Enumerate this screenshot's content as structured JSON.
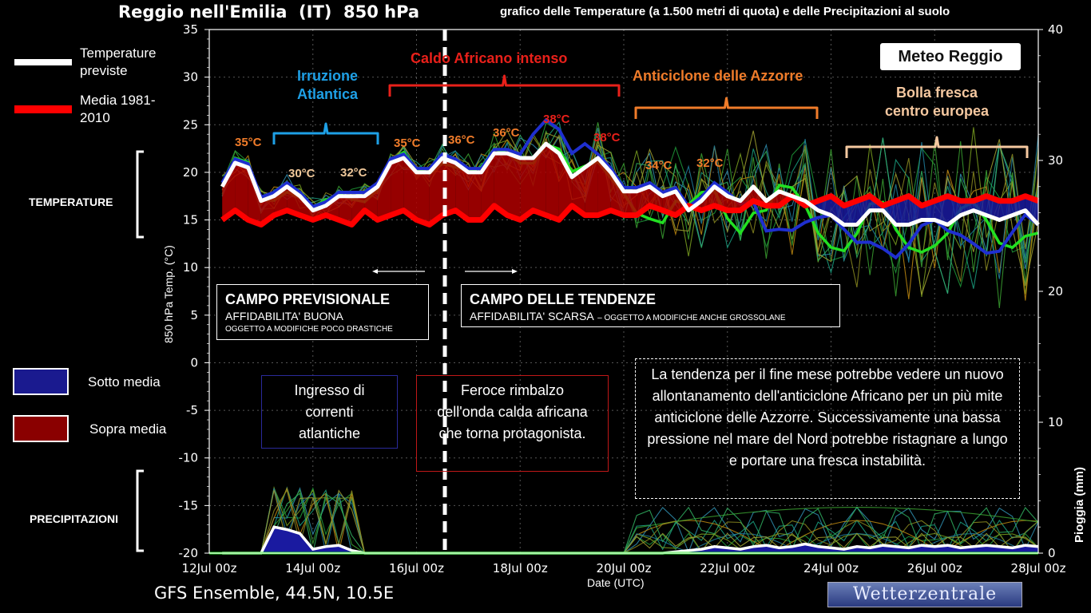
{
  "header": {
    "title": "Reggio nell'Emilia  (IT)  850 hPa",
    "subtitle": "grafico delle Temperature  (a 1.500 metri di quota) e delle Precipitazioni al suolo"
  },
  "footer": {
    "model": "GFS Ensemble, 44.5N, 10.5E",
    "source_logo": "Wetterzentrale",
    "brand_logo": "Meteo Reggio"
  },
  "legend": {
    "forecast_label": "Temperature previste",
    "average_label": "Media 1981-2010",
    "below_label": "Sotto media",
    "above_label": "Sopra media"
  },
  "side_labels": {
    "temperature": "TEMPERATURE",
    "precipitation": "PRECIPITAZIONI"
  },
  "annotations": {
    "irruzione": "Irruzione Atlantica",
    "caldo": "Caldo Africano intenso",
    "anticiclone": "Anticiclone delle Azzorre",
    "bolla": "Bolla fresca centro europea",
    "temps": [
      "35°C",
      "30°C",
      "32°C",
      "35°C",
      "36°C",
      "36°C",
      "38°C",
      "38°C",
      "34°C",
      "32°C"
    ]
  },
  "boxes": {
    "previsionale": {
      "title": "CAMPO PREVISIONALE",
      "line1": "AFFIDABILITA' BUONA",
      "line2": "OGGETTO A MODIFICHE POCO DRASTICHE"
    },
    "tendenze": {
      "title": "CAMPO DELLE TENDENZE",
      "line1": "AFFIDABILITA' SCARSA",
      "line2": "– OGGETTO A MODIFICHE ANCHE GROSSOLANE"
    },
    "ingresso": "Ingresso di correnti atlantiche",
    "feroce": "Feroce rimbalzo dell'onda calda africana che torna protagonista.",
    "tendenza": "La tendenza per il fine mese potrebbe vedere un nuovo allontanamento dell'anticiclone Africano per un più mite anticiclone delle Azzorre. Successivamente una bassa pressione nel mare del Nord potrebbe ristagnare a lungo e portare una fresca instabilità."
  },
  "colors": {
    "forecast": "#ffffff",
    "average": "#ff0000",
    "above_fill": "#b00000",
    "below_fill": "#1a1aa0",
    "control": "#1f2fd0",
    "operational": "#22e022"
  },
  "chart_data": {
    "type": "line",
    "title": "Reggio nell'Emilia  (IT)  850 hPa",
    "xlabel": "Date (UTC)",
    "ylabel": "850 hPa Temp. (°C)",
    "y2label": "Pioggia (mm)",
    "x_ticks": [
      "12Jul 00z",
      "14Jul 00z",
      "16Jul 00z",
      "18Jul 00z",
      "20Jul 00z",
      "22Jul 00z",
      "24Jul 00z",
      "26Jul 00z",
      "28Jul 00z"
    ],
    "ylim": [
      -20,
      35
    ],
    "y_ticks": [
      35,
      30,
      25,
      20,
      15,
      10,
      5,
      0,
      -5,
      -10,
      -15,
      -20
    ],
    "y2lim": [
      0,
      40
    ],
    "y2_ticks": [
      40,
      30,
      20,
      10,
      0
    ],
    "x_days": [
      12.25,
      12.5,
      12.75,
      13,
      13.25,
      13.5,
      13.75,
      14,
      14.25,
      14.5,
      14.75,
      15,
      15.25,
      15.5,
      15.75,
      16,
      16.25,
      16.5,
      16.75,
      17,
      17.25,
      17.5,
      17.75,
      18,
      18.25,
      18.5,
      18.75,
      19,
      19.25,
      19.5,
      19.75,
      20,
      20.25,
      20.5,
      20.75,
      21,
      21.25,
      21.5,
      21.75,
      22,
      22.25,
      22.5,
      22.75,
      23,
      23.25,
      23.5,
      23.75,
      24,
      24.25,
      24.5,
      24.75,
      25,
      25.25,
      25.5,
      25.75,
      26,
      26.25,
      26.5,
      26.75,
      27,
      27.25,
      27.5,
      27.75,
      28
    ],
    "series": [
      {
        "name": "Temperature previste",
        "values": [
          18.5,
          21.0,
          20.5,
          17.0,
          17.5,
          18.5,
          17.5,
          16.0,
          16.5,
          17.5,
          17.5,
          17.5,
          18.5,
          21.0,
          21.5,
          20.0,
          20.0,
          21.5,
          21.0,
          20.0,
          20.0,
          22.0,
          22.0,
          21.5,
          21.5,
          23.0,
          22.0,
          19.5,
          20.5,
          21.5,
          20.0,
          18.0,
          18.0,
          18.5,
          17.5,
          18.0,
          16.0,
          17.0,
          18.5,
          17.5,
          17.0,
          18.5,
          17.0,
          18.0,
          17.5,
          17.0,
          16.0,
          15.5,
          14.5,
          14.5,
          16.0,
          16.0,
          14.5,
          14.5,
          15.0,
          15.0,
          14.5,
          15.5,
          16.0,
          15.5,
          15.0,
          15.5,
          16.0,
          14.5
        ]
      },
      {
        "name": "Media 1981-2010",
        "values": [
          15.0,
          16.0,
          15.0,
          14.5,
          15.5,
          16.0,
          15.5,
          15.0,
          15.5,
          15.0,
          14.5,
          16.0,
          15.0,
          15.5,
          16.0,
          15.0,
          14.5,
          15.5,
          16.0,
          15.0,
          15.0,
          16.5,
          15.5,
          15.0,
          16.0,
          15.5,
          15.0,
          16.5,
          15.5,
          15.5,
          16.0,
          15.5,
          15.5,
          16.5,
          16.0,
          15.5,
          16.5,
          16.0,
          16.5,
          16.0,
          16.0,
          17.0,
          16.5,
          16.5,
          17.5,
          16.5,
          17.0,
          17.5,
          16.5,
          17.0,
          17.5,
          16.5,
          17.0,
          17.5,
          16.5,
          17.0,
          17.5,
          17.0,
          17.0,
          17.5,
          17.0,
          17.0,
          17.5,
          17.0
        ]
      }
    ],
    "precip_forecast": [
      0,
      0,
      0,
      0,
      2.0,
      1.8,
      1.5,
      0.3,
      0.5,
      0.6,
      0.2,
      0,
      0,
      0,
      0,
      0,
      0,
      0,
      0,
      0,
      0,
      0,
      0,
      0,
      0,
      0,
      0,
      0,
      0,
      0,
      0,
      0,
      0,
      0,
      0,
      0.1,
      0.2,
      0.3,
      0.5,
      0.4,
      0.3,
      0.5,
      0.6,
      0.4,
      0.5,
      0.7,
      0.5,
      0.4,
      0.3,
      0.5,
      0.4,
      0.6,
      0.5,
      0.4,
      0.6,
      0.5,
      0.6,
      0.4,
      0.5,
      0.6,
      0.5,
      0.4,
      0.6,
      0.5
    ]
  }
}
